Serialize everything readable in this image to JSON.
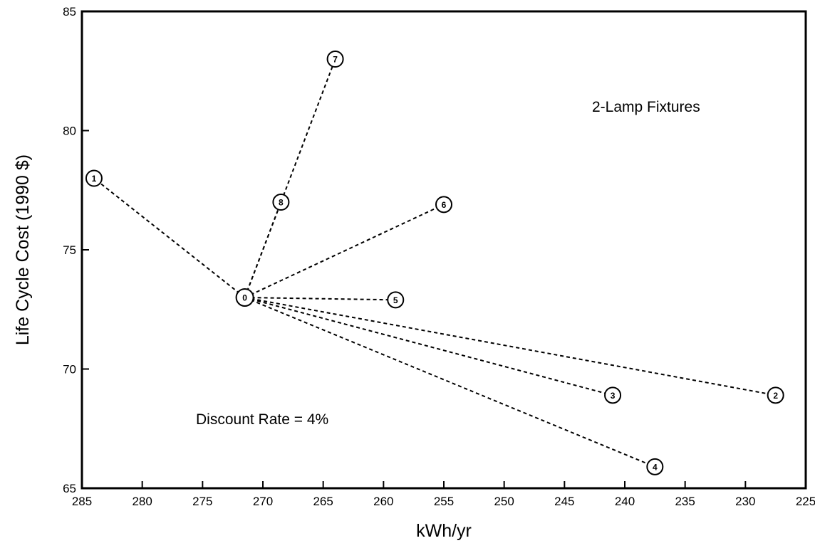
{
  "chart_data": {
    "type": "scatter",
    "title": "",
    "xlabel": "kWh/yr",
    "ylabel": "Life Cycle Cost (1990 $)",
    "xlim": [
      285,
      225
    ],
    "ylim": [
      65,
      85
    ],
    "x_reversed": true,
    "xticks": [
      285,
      280,
      275,
      270,
      265,
      260,
      255,
      250,
      245,
      240,
      235,
      230,
      225
    ],
    "yticks": [
      65,
      70,
      75,
      80,
      85
    ],
    "grid": false,
    "annotations": [
      "2-Lamp Fixtures",
      "Discount Rate = 4%"
    ],
    "base_point": {
      "label": "0",
      "x": 271.5,
      "y": 73.0
    },
    "points": [
      {
        "label": "1",
        "x": 284.0,
        "y": 78.0
      },
      {
        "label": "2",
        "x": 227.5,
        "y": 68.9
      },
      {
        "label": "3",
        "x": 241.0,
        "y": 68.9
      },
      {
        "label": "4",
        "x": 237.5,
        "y": 65.9
      },
      {
        "label": "5",
        "x": 259.0,
        "y": 72.9
      },
      {
        "label": "6",
        "x": 255.0,
        "y": 76.9
      },
      {
        "label": "7",
        "x": 264.0,
        "y": 83.0
      },
      {
        "label": "8",
        "x": 268.5,
        "y": 77.0
      }
    ],
    "connector_style": "dashed lines from point 0 to each alternative"
  }
}
